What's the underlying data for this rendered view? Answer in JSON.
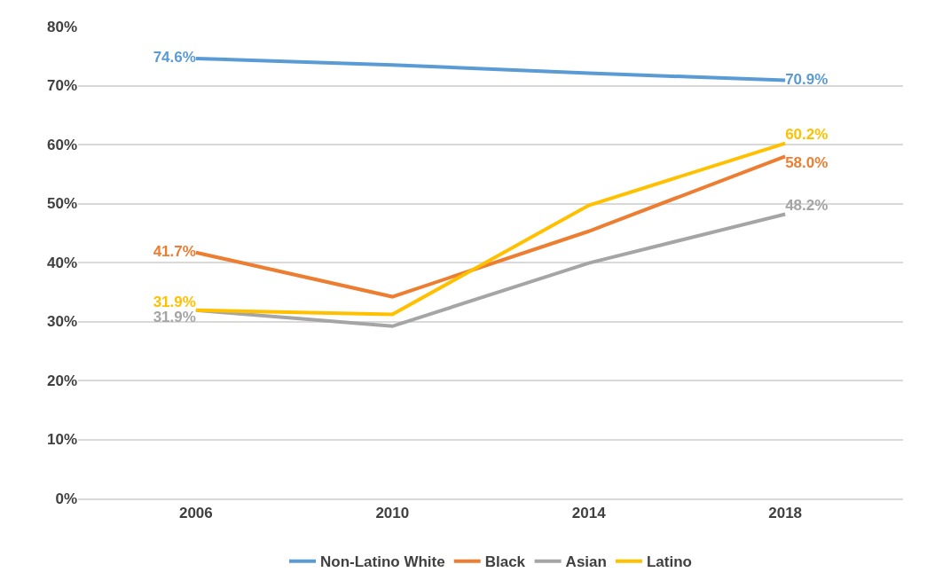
{
  "chart_data": {
    "type": "line",
    "x": [
      2006,
      2010,
      2014,
      2018
    ],
    "xlim": [
      2003.6,
      2020.4
    ],
    "xticks": [
      2006,
      2010,
      2014,
      2018
    ],
    "ylim": [
      0,
      80
    ],
    "yticks": [
      {
        "value": 0,
        "label": "0%"
      },
      {
        "value": 10,
        "label": "10%"
      },
      {
        "value": 20,
        "label": "20%"
      },
      {
        "value": 30,
        "label": "30%"
      },
      {
        "value": 40,
        "label": "40%"
      },
      {
        "value": 50,
        "label": "50%"
      },
      {
        "value": 60,
        "label": "60%"
      },
      {
        "value": 70,
        "label": "70%"
      },
      {
        "value": 80,
        "label": "80%"
      }
    ],
    "grid": "y",
    "legend": "bottom",
    "marker": "none",
    "line_style": "solid",
    "series": [
      {
        "name": "Non-Latino White",
        "color": "#5b9bd5",
        "values": [
          74.6,
          73.5,
          72.1,
          70.9
        ],
        "value_labels": [
          "74.6%",
          null,
          null,
          "70.9%"
        ]
      },
      {
        "name": "Black",
        "color": "#ed7d31",
        "values": [
          41.7,
          34.2,
          45.3,
          58.0
        ],
        "value_labels": [
          "41.7%",
          null,
          null,
          "58.0%"
        ]
      },
      {
        "name": "Asian",
        "color": "#a5a5a5",
        "values": [
          31.9,
          29.2,
          39.9,
          48.2
        ],
        "value_labels": [
          "31.9%",
          null,
          null,
          "48.2%"
        ]
      },
      {
        "name": "Latino",
        "color": "#ffc000",
        "values": [
          31.9,
          31.2,
          49.7,
          60.2
        ],
        "value_labels": [
          "31.9%",
          null,
          null,
          "60.2%"
        ]
      }
    ]
  }
}
